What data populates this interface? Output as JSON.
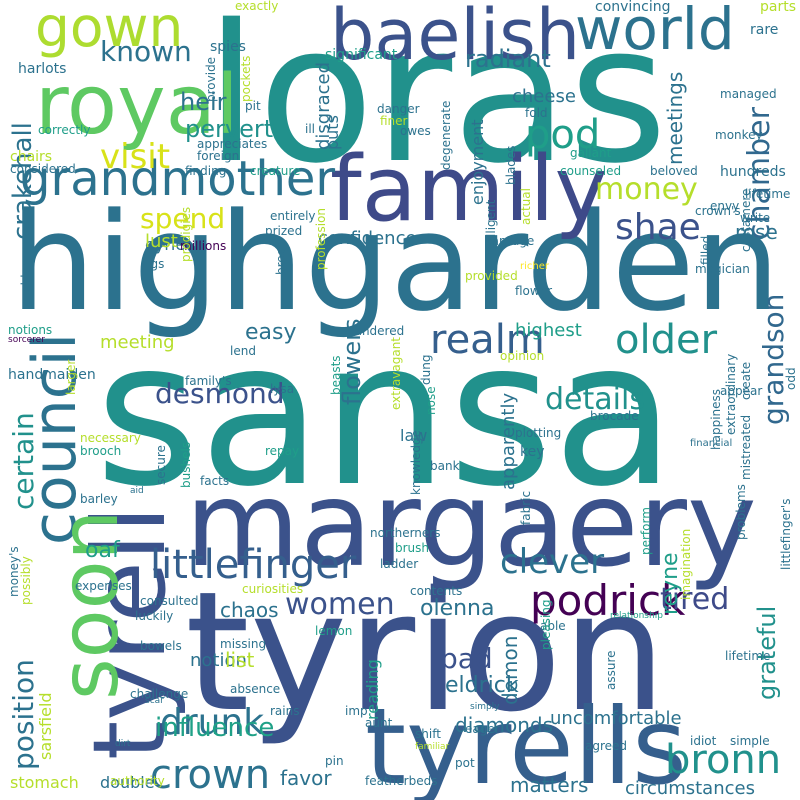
{
  "words": [
    {
      "text": "sansa",
      "color": "#21918c"
    },
    {
      "text": "highgarden",
      "color": "#2c728e"
    },
    {
      "text": "tyrion",
      "color": "#3b528b"
    },
    {
      "text": "loras",
      "color": "#21918c"
    },
    {
      "text": "margaery",
      "color": "#3b528b"
    },
    {
      "text": "tyrells",
      "color": "#355f8d"
    },
    {
      "text": "family",
      "color": "#3e4a89"
    },
    {
      "text": "royal",
      "color": "#5ec962"
    },
    {
      "text": "baelish",
      "color": "#3b528b"
    },
    {
      "text": "world",
      "color": "#2c728e"
    },
    {
      "text": "gown",
      "color": "#addc30"
    },
    {
      "text": "council",
      "color": "#2c728e"
    },
    {
      "text": "tyrell",
      "color": "#3b528b"
    },
    {
      "text": "soon",
      "color": "#5ec962"
    },
    {
      "text": "grandmother",
      "color": "#2c728e"
    },
    {
      "text": "podrick",
      "color": "#440154"
    },
    {
      "text": "littlefinger",
      "color": "#355f8d"
    },
    {
      "text": "realm",
      "color": "#355f8d"
    },
    {
      "text": "crown",
      "color": "#2c728e"
    },
    {
      "text": "drunk",
      "color": "#2c728e"
    },
    {
      "text": "women",
      "color": "#3b528b"
    },
    {
      "text": "bronn",
      "color": "#21918c"
    },
    {
      "text": "chamber",
      "color": "#31688e"
    },
    {
      "text": "grandson",
      "color": "#31688e"
    },
    {
      "text": "older",
      "color": "#21918c"
    },
    {
      "text": "clever",
      "color": "#2c728e"
    },
    {
      "text": "pod",
      "color": "#1f9e89"
    },
    {
      "text": "visit",
      "color": "#d8e219"
    },
    {
      "text": "money",
      "color": "#b5de2b"
    },
    {
      "text": "shae",
      "color": "#3b528b"
    },
    {
      "text": "desmond",
      "color": "#3b528b"
    },
    {
      "text": "details",
      "color": "#21918c"
    },
    {
      "text": "position",
      "color": "#2c728e"
    },
    {
      "text": "certain",
      "color": "#21918c"
    },
    {
      "text": "known",
      "color": "#2c728e"
    },
    {
      "text": "spend",
      "color": "#d8e219"
    },
    {
      "text": "heir",
      "color": "#2c728e"
    },
    {
      "text": "radiant",
      "color": "#2c728e"
    },
    {
      "text": "crakehall",
      "color": "#2c728e"
    },
    {
      "text": "pervert",
      "color": "#21918c"
    },
    {
      "text": "tired",
      "color": "#3e4a89"
    },
    {
      "text": "influence",
      "color": "#1fa187"
    },
    {
      "text": "flowers",
      "color": "#2c728e"
    },
    {
      "text": "easy",
      "color": "#2c728e"
    },
    {
      "text": "confidence",
      "color": "#2c728e"
    },
    {
      "text": "meeting",
      "color": "#b5de2b"
    },
    {
      "text": "highest",
      "color": "#1f9e89"
    },
    {
      "text": "grateful",
      "color": "#21918c"
    },
    {
      "text": "oaf",
      "color": "#1f9e89"
    },
    {
      "text": "eldrick",
      "color": "#2c728e"
    },
    {
      "text": "bad",
      "color": "#3b528b"
    },
    {
      "text": "olenna",
      "color": "#2c728e"
    },
    {
      "text": "diamonds",
      "color": "#2c728e"
    },
    {
      "text": "matters",
      "color": "#2c728e"
    },
    {
      "text": "circumstances",
      "color": "#2c728e"
    },
    {
      "text": "favor",
      "color": "#2c728e"
    },
    {
      "text": "notion",
      "color": "#2c728e"
    },
    {
      "text": "list",
      "color": "#b5de2b"
    },
    {
      "text": "chaos",
      "color": "#2c728e"
    },
    {
      "text": "cheese",
      "color": "#2c728e"
    },
    {
      "text": "meetings",
      "color": "#2c728e"
    },
    {
      "text": "reyne",
      "color": "#1f9e89"
    },
    {
      "text": "demon",
      "color": "#2c728e"
    },
    {
      "text": "sarsfield",
      "color": "#b5de2b"
    },
    {
      "text": "uncomfortable",
      "color": "#2c728e"
    },
    {
      "text": "double",
      "color": "#2c728e"
    },
    {
      "text": "disgraced",
      "color": "#2c728e"
    },
    {
      "text": "eyrie",
      "color": "#2c728e"
    },
    {
      "text": "rose",
      "color": "#2c728e"
    },
    {
      "text": "lust",
      "color": "#b5de2b"
    },
    {
      "text": "enjoyment",
      "color": "#2c728e"
    },
    {
      "text": "puts",
      "color": "#2c728e"
    },
    {
      "text": "law",
      "color": "#2c728e"
    },
    {
      "text": "apparently",
      "color": "#2c728e"
    },
    {
      "text": "reading",
      "color": "#1f9e89"
    },
    {
      "text": "stomach",
      "color": "#b5de2b"
    },
    {
      "text": "spies",
      "color": "#2c728e"
    },
    {
      "text": "significant",
      "color": "#1f9e89"
    },
    {
      "text": "exactly",
      "color": "#b5de2b"
    },
    {
      "text": "convincing",
      "color": "#2c728e"
    },
    {
      "text": "parts",
      "color": "#b5de2b"
    },
    {
      "text": "rare",
      "color": "#2c728e"
    },
    {
      "text": "harlots",
      "color": "#2c728e"
    },
    {
      "text": "provide",
      "color": "#2c728e"
    },
    {
      "text": "pockets",
      "color": "#b5de2b"
    },
    {
      "text": "managed",
      "color": "#2c728e"
    },
    {
      "text": "correctly",
      "color": "#1f9e89"
    },
    {
      "text": "chairs",
      "color": "#b5de2b"
    },
    {
      "text": "considered",
      "color": "#2c728e"
    },
    {
      "text": "appreciates",
      "color": "#2c728e"
    },
    {
      "text": "foreign",
      "color": "#2c728e"
    },
    {
      "text": "finding",
      "color": "#2c728e"
    },
    {
      "text": "pit",
      "color": "#2c728e"
    },
    {
      "text": "ill",
      "color": "#2c728e"
    },
    {
      "text": "danger",
      "color": "#2c728e"
    },
    {
      "text": "finer",
      "color": "#b5de2b"
    },
    {
      "text": "owes",
      "color": "#2c728e"
    },
    {
      "text": "fold",
      "color": "#2c728e"
    },
    {
      "text": "monkey",
      "color": "#2c728e"
    },
    {
      "text": "gallant",
      "color": "#1f9e89"
    },
    {
      "text": "creature",
      "color": "#1f9e89"
    },
    {
      "text": "degenerate",
      "color": "#2c728e"
    },
    {
      "text": "counseled",
      "color": "#1f9e89"
    },
    {
      "text": "beloved",
      "color": "#2c728e"
    },
    {
      "text": "hundreds",
      "color": "#2c728e"
    },
    {
      "text": "lifetime",
      "color": "#2c728e"
    },
    {
      "text": "envy",
      "color": "#2c728e"
    },
    {
      "text": "crown's",
      "color": "#2c728e"
    },
    {
      "text": "write",
      "color": "#2c728e"
    },
    {
      "text": "entirely",
      "color": "#2c728e"
    },
    {
      "text": "prized",
      "color": "#2c728e"
    },
    {
      "text": "blades",
      "color": "#2c728e"
    },
    {
      "text": "actual",
      "color": "#b5de2b"
    },
    {
      "text": "millions",
      "color": "#440154"
    },
    {
      "text": "carriage",
      "color": "#2c728e"
    },
    {
      "text": "richer",
      "color": "#fde725"
    },
    {
      "text": "castamere",
      "color": "#2c728e"
    },
    {
      "text": "problem",
      "color": "#2c728e"
    },
    {
      "text": "figs",
      "color": "#2c728e"
    },
    {
      "text": "prodigies",
      "color": "#b5de2b"
    },
    {
      "text": "breed",
      "color": "#2c728e"
    },
    {
      "text": "profession",
      "color": "#b5de2b"
    },
    {
      "text": "intelligent",
      "color": "#2c728e"
    },
    {
      "text": "flower",
      "color": "#2c728e"
    },
    {
      "text": "provided",
      "color": "#b5de2b"
    },
    {
      "text": "filled",
      "color": "#2c728e"
    },
    {
      "text": "magician",
      "color": "#2c728e"
    },
    {
      "text": "notions",
      "color": "#1f9e89"
    },
    {
      "text": "sorcerer",
      "color": "#440154"
    },
    {
      "text": "slandered",
      "color": "#2c728e"
    },
    {
      "text": "lend",
      "color": "#2c728e"
    },
    {
      "text": "opinion",
      "color": "#b5de2b"
    },
    {
      "text": "handmaiden",
      "color": "#2c728e"
    },
    {
      "text": "family's",
      "color": "#2c728e"
    },
    {
      "text": "larger",
      "color": "#b5de2b"
    },
    {
      "text": "lysa",
      "color": "#2c728e"
    },
    {
      "text": "dung",
      "color": "#2c728e"
    },
    {
      "text": "appear",
      "color": "#2c728e"
    },
    {
      "text": "odd",
      "color": "#2c728e"
    },
    {
      "text": "necessary",
      "color": "#b5de2b"
    },
    {
      "text": "brooch",
      "color": "#1f9e89"
    },
    {
      "text": "beasts",
      "color": "#1f9e89"
    },
    {
      "text": "extravagant",
      "color": "#b5de2b"
    },
    {
      "text": "nose",
      "color": "#1f9e89"
    },
    {
      "text": "plotting",
      "color": "#2c728e"
    },
    {
      "text": "key",
      "color": "#2c728e"
    },
    {
      "text": "brocade",
      "color": "#2c728e"
    },
    {
      "text": "create",
      "color": "#2c728e"
    },
    {
      "text": "financial",
      "color": "#2c728e"
    },
    {
      "text": "repay",
      "color": "#1f9e89"
    },
    {
      "text": "bank",
      "color": "#2c728e"
    },
    {
      "text": "barley",
      "color": "#2c728e"
    },
    {
      "text": "facts",
      "color": "#2c728e"
    },
    {
      "text": "aid",
      "color": "#2c728e"
    },
    {
      "text": "secure",
      "color": "#2c728e"
    },
    {
      "text": "bushels",
      "color": "#1f9e89"
    },
    {
      "text": "knowledge",
      "color": "#2c728e"
    },
    {
      "text": "northerners",
      "color": "#2c728e"
    },
    {
      "text": "ladder",
      "color": "#2c728e"
    },
    {
      "text": "brush",
      "color": "#1f9e89"
    },
    {
      "text": "fabric",
      "color": "#2c728e"
    },
    {
      "text": "perform",
      "color": "#1f9e89"
    },
    {
      "text": "extraordinary",
      "color": "#2c728e"
    },
    {
      "text": "happiness",
      "color": "#2c728e"
    },
    {
      "text": "mistreated",
      "color": "#2c728e"
    },
    {
      "text": "problems",
      "color": "#2c728e"
    },
    {
      "text": "money's",
      "color": "#2c728e"
    },
    {
      "text": "possibly",
      "color": "#b5de2b"
    },
    {
      "text": "expenses",
      "color": "#2c728e"
    },
    {
      "text": "curiosities",
      "color": "#b5de2b"
    },
    {
      "text": "consulted",
      "color": "#2c728e"
    },
    {
      "text": "luckily",
      "color": "#2c728e"
    },
    {
      "text": "contents",
      "color": "#2c728e"
    },
    {
      "text": "lemon",
      "color": "#1f9e89"
    },
    {
      "text": "able",
      "color": "#2c728e"
    },
    {
      "text": "pleasing",
      "color": "#1f9e89"
    },
    {
      "text": "assure",
      "color": "#2c728e"
    },
    {
      "text": "imagination",
      "color": "#b5de2b"
    },
    {
      "text": "relationship",
      "color": "#1f9e89"
    },
    {
      "text": "lifetime",
      "color": "#2c728e"
    },
    {
      "text": "littlefinger's",
      "color": "#2c728e"
    },
    {
      "text": "bowels",
      "color": "#2c728e"
    },
    {
      "text": "missing",
      "color": "#2c728e"
    },
    {
      "text": "challenge",
      "color": "#2c728e"
    },
    {
      "text": "absence",
      "color": "#2c728e"
    },
    {
      "text": "scar",
      "color": "#2c728e"
    },
    {
      "text": "simply",
      "color": "#2c728e"
    },
    {
      "text": "rains",
      "color": "#2c728e"
    },
    {
      "text": "imp",
      "color": "#2c728e"
    },
    {
      "text": "eager",
      "color": "#2c728e"
    },
    {
      "text": "shift",
      "color": "#2c728e"
    },
    {
      "text": "familiar",
      "color": "#b5de2b"
    },
    {
      "text": "aunt",
      "color": "#2c728e"
    },
    {
      "text": "simple",
      "color": "#2c728e"
    },
    {
      "text": "dirt",
      "color": "#2c728e"
    },
    {
      "text": "pin",
      "color": "#2c728e"
    },
    {
      "text": "pot",
      "color": "#2c728e"
    },
    {
      "text": "agreed",
      "color": "#2c728e"
    },
    {
      "text": "idiot",
      "color": "#2c728e"
    },
    {
      "text": "authority",
      "color": "#b5de2b"
    },
    {
      "text": "featherbeds",
      "color": "#2c728e"
    }
  ]
}
